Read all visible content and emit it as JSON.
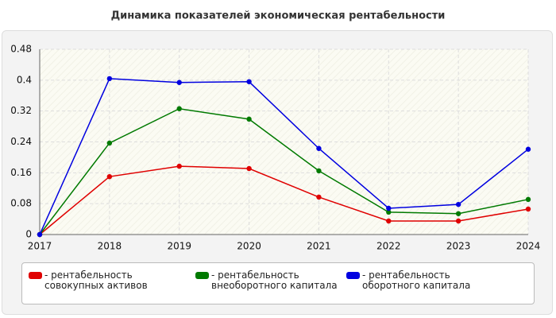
{
  "chart_data": {
    "type": "line",
    "title": "Динамика показателей экономическая рентабельности",
    "categories": [
      "2017",
      "2018",
      "2019",
      "2020",
      "2021",
      "2022",
      "2023",
      "2024"
    ],
    "series": [
      {
        "name": "рентабельность совокупных активов",
        "color": "#e00000",
        "values": [
          0,
          0.15,
          0.177,
          0.171,
          0.097,
          0.035,
          0.035,
          0.066
        ]
      },
      {
        "name": "рентабельность внеоборотного капитала",
        "color": "#007a00",
        "values": [
          0,
          0.237,
          0.326,
          0.299,
          0.165,
          0.058,
          0.054,
          0.091
        ]
      },
      {
        "name": "рентабельность оборотного капитала",
        "color": "#0000e0",
        "values": [
          0,
          0.404,
          0.394,
          0.396,
          0.223,
          0.068,
          0.078,
          0.221
        ]
      }
    ],
    "ylim": [
      0,
      0.48
    ],
    "yticks": [
      0,
      0.08,
      0.16,
      0.24,
      0.32,
      0.4,
      0.48
    ],
    "grid": true
  }
}
